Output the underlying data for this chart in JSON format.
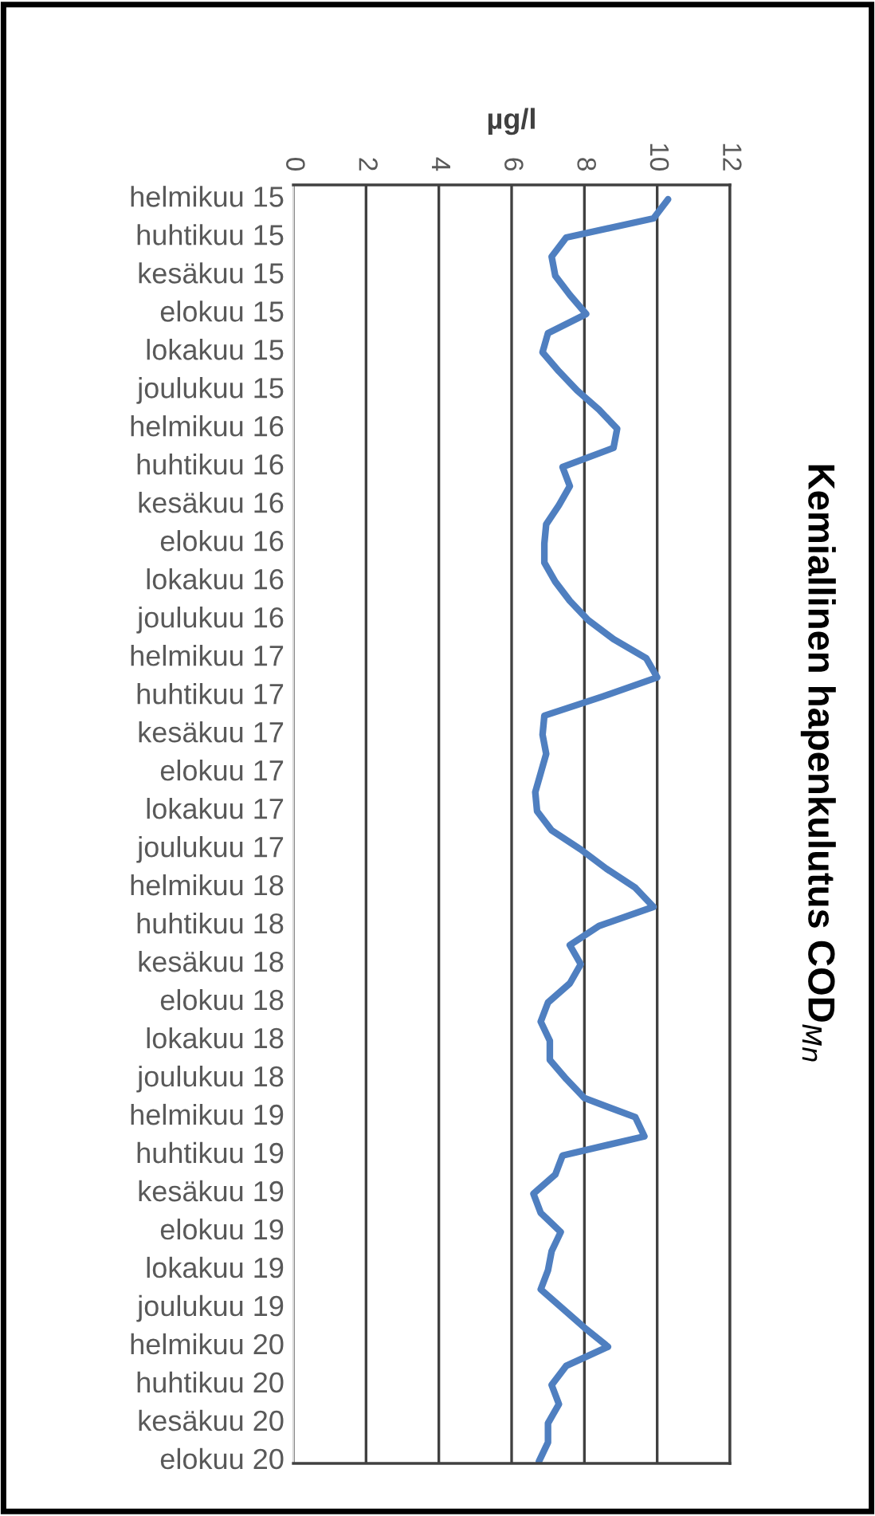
{
  "chart_data": {
    "type": "line",
    "orientation": "horizontal",
    "title": "Kemiallinen hapenkulutus COD$_{Mn}$",
    "xlabel": "µg/l",
    "categories": [
      "helmikuu 15",
      null,
      "huhtikuu 15",
      null,
      "kesäkuu 15",
      null,
      "elokuu 15",
      null,
      "lokakuu 15",
      null,
      "joulukuu 15",
      null,
      "helmikuu 16",
      null,
      "huhtikuu 16",
      null,
      "kesäkuu 16",
      null,
      "elokuu 16",
      null,
      "lokakuu 16",
      null,
      "joulukuu 16",
      null,
      "helmikuu 17",
      null,
      "huhtikuu 17",
      null,
      "kesäkuu 17",
      null,
      "elokuu 17",
      null,
      "lokakuu 17",
      null,
      "joulukuu 17",
      null,
      "helmikuu 18",
      null,
      "huhtikuu 18",
      null,
      "kesäkuu 18",
      null,
      "elokuu 18",
      null,
      "lokakuu 18",
      null,
      "joulukuu 18",
      null,
      "helmikuu 19",
      null,
      "huhtikuu 19",
      null,
      "kesäkuu 19",
      null,
      "elokuu 19",
      null,
      "lokakuu 19",
      null,
      "joulukuu 19",
      null,
      "helmikuu 20",
      null,
      "huhtikuu 20",
      null,
      "kesäkuu 20",
      null,
      "elokuu 20"
    ],
    "series": [
      {
        "color": "#4f7fc0",
        "values": [
          10.3,
          9.9,
          7.5,
          7.1,
          7.2,
          7.6,
          8.05,
          7.0,
          6.85,
          7.3,
          7.8,
          8.4,
          8.9,
          8.8,
          7.4,
          7.6,
          7.3,
          6.95,
          6.9,
          6.9,
          7.2,
          7.6,
          8.1,
          8.8,
          9.7,
          10.0,
          8.5,
          6.9,
          6.85,
          6.95,
          6.8,
          6.65,
          6.7,
          7.1,
          7.9,
          8.6,
          9.4,
          9.9,
          8.4,
          7.6,
          7.9,
          7.6,
          7.0,
          6.8,
          7.05,
          7.05,
          7.5,
          8.0,
          9.4,
          9.65,
          7.4,
          7.2,
          6.6,
          6.8,
          7.35,
          7.1,
          7.0,
          6.8,
          7.4,
          8.0,
          8.65,
          7.5,
          7.1,
          7.3,
          7.0,
          7.0,
          6.75
        ]
      }
    ],
    "xlim": [
      0,
      12
    ],
    "xticks": [
      0,
      2,
      4,
      6,
      8,
      10,
      12
    ],
    "grid": "x",
    "legend": false,
    "marker": "none",
    "line_style": "solid"
  }
}
